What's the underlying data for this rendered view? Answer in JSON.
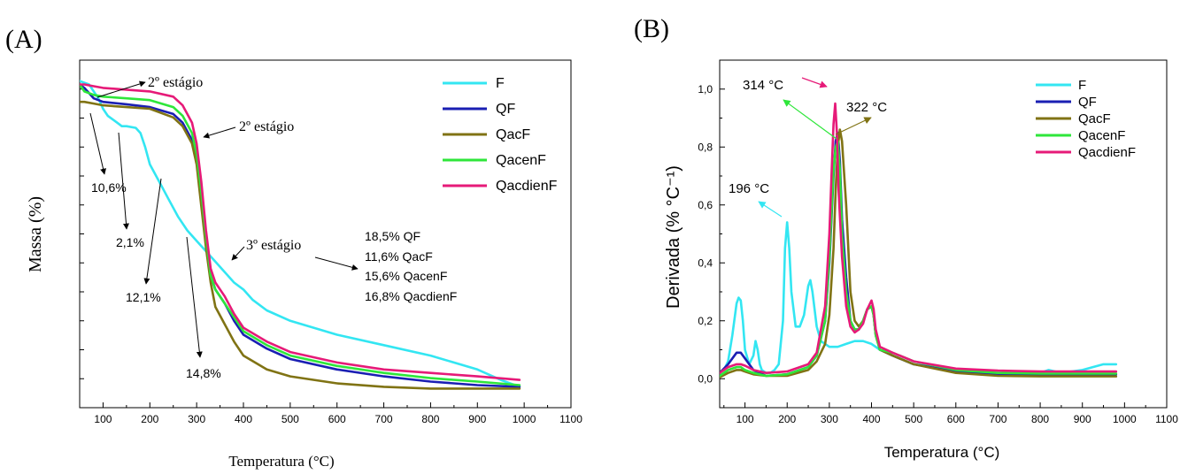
{
  "colors": {
    "F": "#33e6f2",
    "QF": "#1a1fb3",
    "QacF": "#807314",
    "QacenF": "#2ee63a",
    "QacdienF": "#e61a78"
  },
  "chart_data": [
    {
      "panel_label": "(A)",
      "type": "line",
      "title": "",
      "xlabel": "Temperatura (°C)",
      "ylabel": "Massa (%)",
      "xlim": [
        50,
        1100
      ],
      "ylim": [
        0,
        100
      ],
      "xticks": [
        "100",
        "200",
        "300",
        "400",
        "500",
        "600",
        "700",
        "800",
        "900",
        "1000",
        "1100"
      ],
      "y_ticks_labeled": false,
      "legend_position": "top-right",
      "series": [
        {
          "name": "F",
          "x": [
            50,
            70,
            90,
            100,
            110,
            120,
            130,
            140,
            150,
            170,
            180,
            190,
            200,
            220,
            240,
            260,
            280,
            300,
            320,
            340,
            360,
            380,
            400,
            420,
            450,
            500,
            600,
            700,
            800,
            900,
            950,
            990
          ],
          "y": [
            94,
            93,
            89,
            86,
            84,
            83,
            82,
            81,
            81,
            80.5,
            79,
            75,
            70,
            65,
            60,
            55,
            51,
            48,
            45,
            42,
            39,
            36,
            34,
            31,
            28,
            25,
            21,
            18,
            15,
            11,
            8,
            6
          ]
        },
        {
          "name": "QF",
          "x": [
            50,
            60,
            80,
            100,
            150,
            200,
            250,
            270,
            290,
            300,
            310,
            320,
            330,
            340,
            360,
            380,
            400,
            450,
            500,
            600,
            700,
            800,
            900,
            990
          ],
          "y": [
            93,
            92,
            89,
            88,
            87.3,
            86.5,
            84.5,
            82,
            77,
            71,
            60,
            48,
            38,
            34,
            30,
            25,
            21,
            17,
            14,
            11,
            9,
            7.5,
            6.5,
            6
          ]
        },
        {
          "name": "QacF",
          "x": [
            50,
            60,
            80,
            100,
            150,
            200,
            250,
            270,
            290,
            300,
            310,
            320,
            330,
            340,
            360,
            380,
            400,
            450,
            500,
            600,
            700,
            800,
            900,
            990
          ],
          "y": [
            88,
            88,
            87.5,
            87,
            86.5,
            86,
            83.5,
            81,
            76,
            70,
            58,
            46,
            36,
            29,
            24,
            19,
            15,
            11,
            9,
            7,
            6,
            5.5,
            5.5,
            5.5
          ]
        },
        {
          "name": "QacenF",
          "x": [
            50,
            60,
            80,
            100,
            150,
            200,
            250,
            270,
            290,
            300,
            310,
            320,
            330,
            340,
            360,
            380,
            400,
            450,
            500,
            600,
            700,
            800,
            900,
            990
          ],
          "y": [
            93,
            91,
            90,
            89.5,
            89,
            88.5,
            86.5,
            84,
            79,
            73,
            62,
            49,
            38,
            34,
            30,
            26,
            22,
            18,
            15,
            12,
            10,
            8.5,
            7.5,
            6.5
          ]
        },
        {
          "name": "QacdienF",
          "x": [
            50,
            60,
            80,
            100,
            150,
            200,
            250,
            270,
            290,
            300,
            310,
            320,
            330,
            340,
            360,
            380,
            400,
            450,
            500,
            600,
            700,
            800,
            900,
            990
          ],
          "y": [
            93,
            93,
            92.5,
            92,
            91.5,
            91,
            89.5,
            87,
            82,
            76,
            65,
            51,
            40,
            36,
            32,
            27,
            23,
            19,
            16,
            13,
            11,
            10,
            9,
            8
          ]
        }
      ],
      "annotations": [
        {
          "text": "2º estágio"
        },
        {
          "text": "2º estágio"
        },
        {
          "text": "10,6%"
        },
        {
          "text": "2,1%"
        },
        {
          "text": "12,1%"
        },
        {
          "text": "14,8%"
        },
        {
          "text": "3º estágio"
        },
        {
          "text": "18,5% QF"
        },
        {
          "text": "11,6% QacF"
        },
        {
          "text": "15,6% QacenF"
        },
        {
          "text": "16,8% QacdienF"
        }
      ]
    },
    {
      "panel_label": "(B)",
      "type": "line",
      "title": "",
      "xlabel": "Temperatura (°C)",
      "ylabel": "Derivada (% °C⁻¹)",
      "xlim": [
        40,
        1100
      ],
      "ylim": [
        -0.1,
        1.1
      ],
      "xticks": [
        "100",
        "200",
        "300",
        "400",
        "500",
        "600",
        "700",
        "800",
        "900",
        "1000",
        "1100"
      ],
      "yticks": [
        "0,0",
        "0,2",
        "0,4",
        "0,6",
        "0,8",
        "1,0"
      ],
      "legend_position": "top-right",
      "series": [
        {
          "name": "F",
          "x": [
            50,
            60,
            70,
            80,
            85,
            90,
            95,
            100,
            110,
            120,
            125,
            130,
            135,
            140,
            150,
            160,
            170,
            180,
            190,
            195,
            200,
            205,
            210,
            220,
            230,
            240,
            250,
            255,
            260,
            270,
            280,
            300,
            320,
            340,
            360,
            380,
            400,
            420,
            450,
            500,
            600,
            700,
            800,
            820,
            850,
            900,
            950,
            980
          ],
          "y": [
            0.03,
            0.06,
            0.15,
            0.26,
            0.28,
            0.27,
            0.2,
            0.1,
            0.05,
            0.08,
            0.13,
            0.1,
            0.05,
            0.03,
            0.02,
            0.02,
            0.03,
            0.05,
            0.2,
            0.45,
            0.54,
            0.45,
            0.3,
            0.18,
            0.18,
            0.22,
            0.32,
            0.34,
            0.3,
            0.18,
            0.13,
            0.11,
            0.11,
            0.12,
            0.13,
            0.13,
            0.12,
            0.1,
            0.08,
            0.05,
            0.03,
            0.02,
            0.02,
            0.03,
            0.02,
            0.03,
            0.05,
            0.05
          ]
        },
        {
          "name": "QF",
          "x": [
            40,
            60,
            80,
            90,
            100,
            120,
            150,
            200,
            250,
            270,
            290,
            300,
            310,
            315,
            320,
            325,
            330,
            340,
            350,
            360,
            370,
            380,
            390,
            400,
            405,
            410,
            420,
            450,
            500,
            600,
            700,
            800,
            900,
            980
          ],
          "y": [
            0.02,
            0.05,
            0.09,
            0.09,
            0.07,
            0.03,
            0.01,
            0.015,
            0.04,
            0.08,
            0.2,
            0.4,
            0.7,
            0.82,
            0.85,
            0.75,
            0.55,
            0.35,
            0.2,
            0.17,
            0.17,
            0.2,
            0.24,
            0.25,
            0.22,
            0.15,
            0.1,
            0.08,
            0.05,
            0.025,
            0.015,
            0.015,
            0.015,
            0.015
          ]
        },
        {
          "name": "QacF",
          "x": [
            40,
            60,
            80,
            90,
            100,
            120,
            150,
            200,
            250,
            270,
            290,
            300,
            310,
            315,
            320,
            325,
            330,
            340,
            350,
            360,
            370,
            380,
            390,
            400,
            405,
            410,
            420,
            450,
            500,
            600,
            700,
            800,
            900,
            980
          ],
          "y": [
            0.005,
            0.02,
            0.03,
            0.03,
            0.025,
            0.015,
            0.01,
            0.01,
            0.03,
            0.06,
            0.12,
            0.22,
            0.45,
            0.65,
            0.8,
            0.86,
            0.82,
            0.6,
            0.3,
            0.2,
            0.18,
            0.2,
            0.24,
            0.25,
            0.22,
            0.15,
            0.1,
            0.08,
            0.05,
            0.02,
            0.01,
            0.008,
            0.008,
            0.008
          ]
        },
        {
          "name": "QacenF",
          "x": [
            40,
            60,
            80,
            90,
            100,
            120,
            150,
            200,
            250,
            270,
            290,
            300,
            310,
            315,
            320,
            325,
            330,
            340,
            350,
            360,
            370,
            380,
            390,
            400,
            405,
            410,
            420,
            450,
            500,
            600,
            700,
            800,
            900,
            980
          ],
          "y": [
            0.01,
            0.03,
            0.04,
            0.04,
            0.03,
            0.02,
            0.01,
            0.015,
            0.04,
            0.08,
            0.2,
            0.42,
            0.72,
            0.8,
            0.82,
            0.72,
            0.5,
            0.3,
            0.2,
            0.17,
            0.17,
            0.2,
            0.24,
            0.25,
            0.22,
            0.15,
            0.1,
            0.09,
            0.06,
            0.03,
            0.02,
            0.018,
            0.018,
            0.018
          ]
        },
        {
          "name": "QacdienF",
          "x": [
            40,
            60,
            80,
            90,
            100,
            120,
            150,
            200,
            250,
            270,
            290,
            300,
            305,
            310,
            314,
            318,
            322,
            330,
            340,
            350,
            360,
            370,
            380,
            390,
            400,
            405,
            410,
            420,
            450,
            500,
            600,
            700,
            800,
            900,
            980
          ],
          "y": [
            0.02,
            0.04,
            0.05,
            0.05,
            0.045,
            0.03,
            0.02,
            0.025,
            0.05,
            0.09,
            0.25,
            0.5,
            0.7,
            0.88,
            0.95,
            0.85,
            0.65,
            0.42,
            0.25,
            0.18,
            0.16,
            0.17,
            0.19,
            0.24,
            0.27,
            0.24,
            0.17,
            0.11,
            0.09,
            0.06,
            0.035,
            0.028,
            0.025,
            0.025,
            0.025
          ]
        }
      ],
      "annotations": [
        {
          "text": "314 °C"
        },
        {
          "text": "322 °C"
        },
        {
          "text": "196 °C"
        }
      ]
    }
  ]
}
